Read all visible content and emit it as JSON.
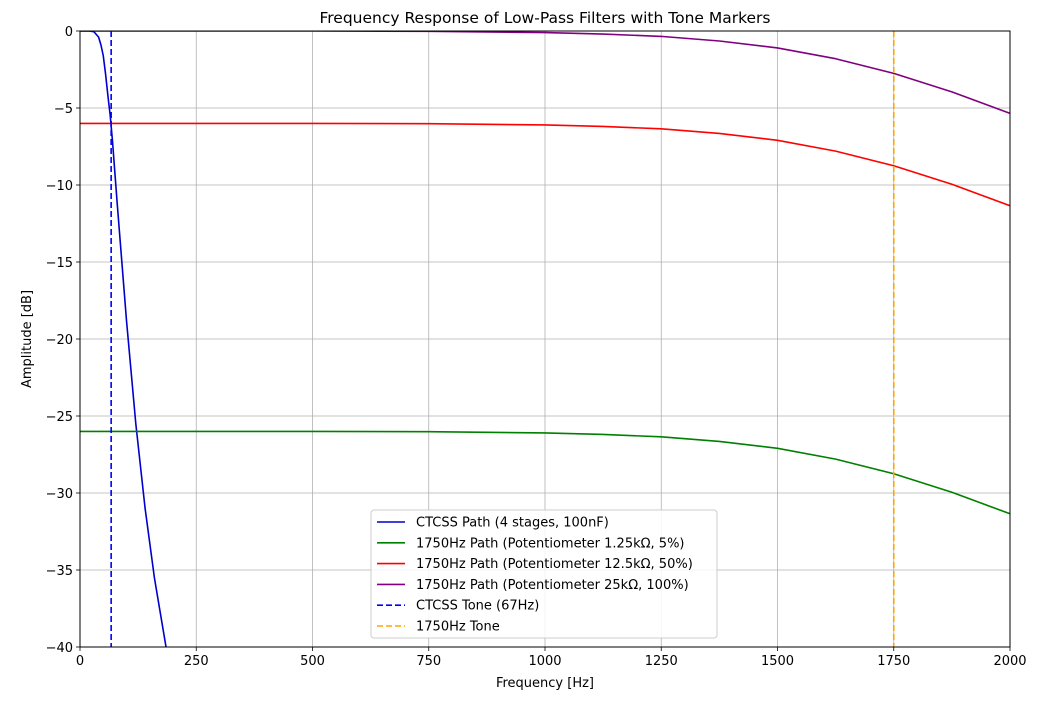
{
  "chart_data": {
    "type": "line",
    "title": "Frequency Response of Low-Pass Filters with Tone Markers",
    "xlabel": "Frequency [Hz]",
    "ylabel": "Amplitude [dB]",
    "xlim": [
      0,
      2000
    ],
    "ylim": [
      -40,
      0
    ],
    "xticks": [
      0,
      250,
      500,
      750,
      1000,
      1250,
      1500,
      1750,
      2000
    ],
    "yticks": [
      0,
      -5,
      -10,
      -15,
      -20,
      -25,
      -30,
      -35,
      -40
    ],
    "grid": true,
    "legend_position": "lower center",
    "series": [
      {
        "name": "CTCSS Path (4 stages, 100nF)",
        "color": "#0000cc",
        "style": "solid",
        "x": [
          0,
          20,
          30,
          40,
          45,
          50,
          55,
          60,
          65,
          70,
          80,
          90,
          100,
          120,
          140,
          160,
          185
        ],
        "y": [
          0,
          0,
          -0.05,
          -0.4,
          -0.9,
          -1.6,
          -2.8,
          -4.2,
          -5.5,
          -7.2,
          -11.2,
          -15.0,
          -18.8,
          -25.5,
          -31.0,
          -35.5,
          -40
        ]
      },
      {
        "name": "1750Hz Path (Potentiometer 1.25kΩ, 5%)",
        "color": "#008000",
        "style": "solid",
        "x": [
          0,
          250,
          500,
          750,
          1000,
          1125,
          1250,
          1375,
          1500,
          1625,
          1750,
          1875,
          2000
        ],
        "y": [
          -26.0,
          -26.0,
          -26.0,
          -26.02,
          -26.1,
          -26.2,
          -26.35,
          -26.65,
          -27.1,
          -27.8,
          -28.75,
          -29.95,
          -31.35
        ]
      },
      {
        "name": "1750Hz Path (Potentiometer 12.5kΩ, 50%)",
        "color": "#ff0000",
        "style": "solid",
        "x": [
          0,
          250,
          500,
          750,
          1000,
          1125,
          1250,
          1375,
          1500,
          1625,
          1750,
          1875,
          2000
        ],
        "y": [
          -6.0,
          -6.0,
          -6.0,
          -6.02,
          -6.1,
          -6.2,
          -6.35,
          -6.65,
          -7.1,
          -7.8,
          -8.75,
          -9.95,
          -11.35
        ]
      },
      {
        "name": "1750Hz Path (Potentiometer 25kΩ, 100%)",
        "color": "#800080",
        "style": "solid",
        "x": [
          0,
          250,
          500,
          750,
          1000,
          1125,
          1250,
          1375,
          1500,
          1625,
          1750,
          1875,
          2000
        ],
        "y": [
          0,
          0,
          0,
          -0.02,
          -0.1,
          -0.2,
          -0.35,
          -0.65,
          -1.1,
          -1.8,
          -2.75,
          -3.95,
          -5.35
        ]
      },
      {
        "name": "CTCSS Tone (67Hz)",
        "color": "#0000ff",
        "style": "dashed",
        "vline_x": 67
      },
      {
        "name": "1750Hz Tone",
        "color": "#ffa500",
        "style": "dashed",
        "vline_x": 1750
      }
    ]
  }
}
